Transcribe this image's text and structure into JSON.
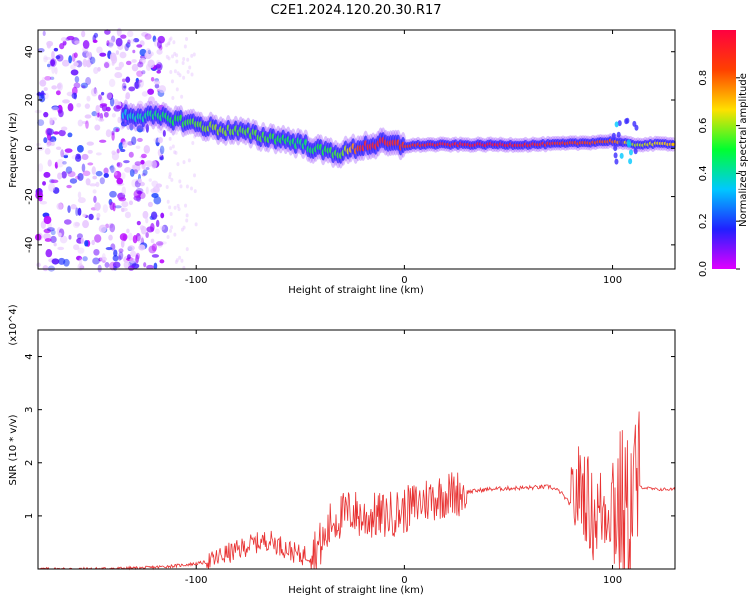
{
  "figure": {
    "title": "C2E1.2024.120.20.30.R17"
  },
  "chart_data": [
    {
      "type": "heatmap",
      "xlabel": "Height of straight line (km)",
      "ylabel": "Frequency (Hz)",
      "xlim": [
        -176,
        130
      ],
      "ylim": [
        -50,
        49
      ],
      "x_ticks": [
        -100,
        0,
        100
      ],
      "y_ticks": [
        -40,
        -20,
        0,
        20,
        40
      ],
      "colorbar": {
        "label": "Normalized spectral amplitude",
        "range": [
          0,
          1
        ],
        "ticks": [
          0.0,
          0.2,
          0.4,
          0.6,
          0.8
        ],
        "colormap": [
          "#e000ff",
          "#2020ff",
          "#00c8ff",
          "#00ff30",
          "#ffe000",
          "#ff4000",
          "#ff0040"
        ]
      },
      "ridge": {
        "x": [
          -135,
          -120,
          -110,
          -100,
          -90,
          -80,
          -70,
          -60,
          -50,
          -40,
          -30,
          -20,
          -10,
          0,
          10,
          20,
          40,
          60,
          80,
          100,
          110,
          130
        ],
        "freq_hz": [
          14,
          13,
          12,
          10,
          8,
          7,
          5,
          4,
          2,
          -1,
          -2,
          1,
          2,
          1,
          1.5,
          1.5,
          1.5,
          1.5,
          2,
          3,
          1.5,
          2
        ],
        "amplitude": [
          0.35,
          0.45,
          0.5,
          0.55,
          0.6,
          0.55,
          0.55,
          0.5,
          0.45,
          0.5,
          0.55,
          0.9,
          0.9,
          0.85,
          0.9,
          0.92,
          0.95,
          0.92,
          0.85,
          0.8,
          0.6,
          0.7
        ]
      },
      "noise_region_x": [
        -176,
        -115
      ]
    },
    {
      "type": "line",
      "xlabel": "Height of straight line (km)",
      "ylabel": "SNR (10 * v/v)",
      "y_multiplier": "(x10^4)",
      "xlim": [
        -176,
        130
      ],
      "ylim": [
        0,
        4.5
      ],
      "x_ticks": [
        -100,
        0,
        100
      ],
      "y_ticks": [
        1,
        2,
        3,
        4
      ],
      "color": "#e83232",
      "series": [
        {
          "x": [
            -176,
            -150,
            -125,
            -110,
            -100,
            -92,
            -88,
            -80,
            -75,
            -70,
            -65,
            -60,
            -55,
            -50,
            -45,
            -42,
            -38,
            -35,
            -30,
            -25,
            -20,
            -15,
            -10,
            -5,
            0,
            5,
            10,
            20,
            30,
            40,
            50,
            60,
            70,
            75,
            80,
            85,
            88,
            90,
            95,
            100,
            105,
            108,
            110,
            113,
            120,
            130
          ],
          "y": [
            0.0,
            0.0,
            0.02,
            0.06,
            0.1,
            0.15,
            0.25,
            0.35,
            0.45,
            0.5,
            0.55,
            0.45,
            0.35,
            0.25,
            0.3,
            0.4,
            0.55,
            0.9,
            1.0,
            1.1,
            0.95,
            1.0,
            1.0,
            1.05,
            1.1,
            1.2,
            1.3,
            1.4,
            1.45,
            1.5,
            1.52,
            1.53,
            1.55,
            1.45,
            1.2,
            1.6,
            1.3,
            1.0,
            1.1,
            1.3,
            1.1,
            0.9,
            1.5,
            1.55,
            1.5,
            1.5
          ]
        }
      ]
    }
  ]
}
